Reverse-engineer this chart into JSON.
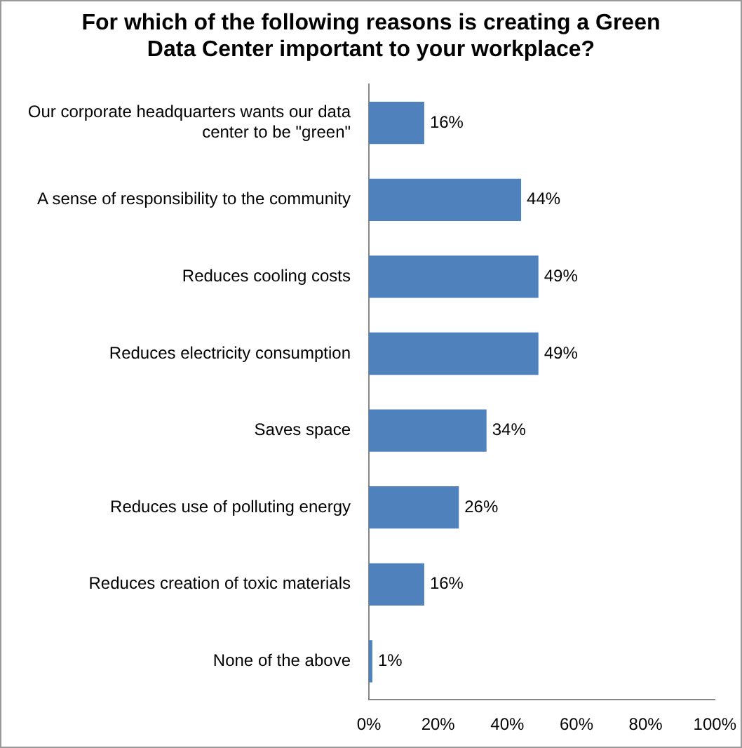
{
  "chart_data": {
    "type": "bar",
    "orientation": "horizontal",
    "title": "For which of the following reasons is creating a Green Data Center important to your workplace?",
    "categories": [
      "Our corporate headquarters wants our data center to be \"green\"",
      "A sense of responsibility to the community",
      "Reduces cooling costs",
      "Reduces electricity consumption",
      "Saves space",
      "Reduces use of polluting energy",
      "Reduces creation of toxic materials",
      "None of the above"
    ],
    "values": [
      16,
      44,
      49,
      49,
      34,
      26,
      16,
      1
    ],
    "value_labels": [
      "16%",
      "44%",
      "49%",
      "49%",
      "34%",
      "26%",
      "16%",
      "1%"
    ],
    "color": "#4f81bd",
    "xlim": [
      0,
      100
    ],
    "xticks": [
      {
        "value": 0,
        "label": "0%"
      },
      {
        "value": 20,
        "label": "20%"
      },
      {
        "value": 40,
        "label": "40%"
      },
      {
        "value": 60,
        "label": "60%"
      },
      {
        "value": 80,
        "label": "80%"
      },
      {
        "value": 100,
        "label": "100%"
      }
    ],
    "grid": false,
    "legend": false
  }
}
